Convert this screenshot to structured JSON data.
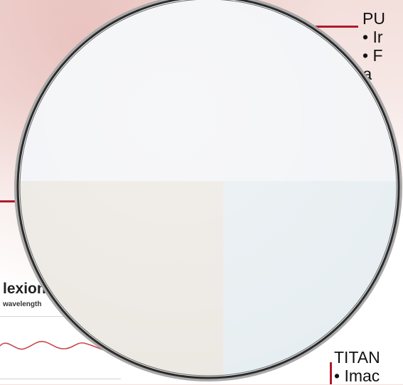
{
  "callout_top": {
    "lines": [
      "PU",
      "• Ir",
      "• F",
      "Pa"
    ]
  },
  "callout_bottom": {
    "lines": [
      "TITAN",
      "• Imac"
    ]
  },
  "spectrum_panel": {
    "title": "lexion",
    "subtitle": "wavelength"
  },
  "lens": {
    "frame_color": "#2b2b2b",
    "rim_color": "#a9a9a9",
    "swatches": [
      {
        "name": "top",
        "color": "#f2f3f6"
      },
      {
        "name": "bottom-left",
        "color": "#ebe7e1"
      },
      {
        "name": "bottom-right",
        "color": "#e6edf0"
      }
    ]
  },
  "colors": {
    "accent_red": "#b0192c"
  }
}
